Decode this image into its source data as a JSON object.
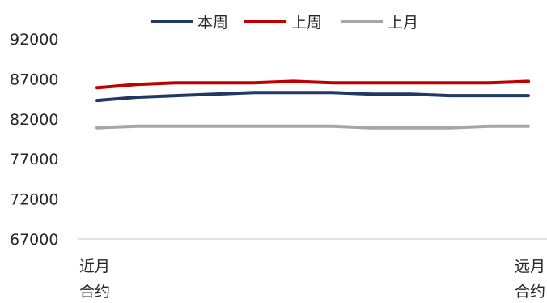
{
  "chart_data": {
    "type": "line",
    "title": "",
    "xlabel": "",
    "ylabel": "",
    "ylim": [
      67000,
      92000
    ],
    "yticks": [
      92000,
      87000,
      82000,
      77000,
      72000,
      67000
    ],
    "grid": false,
    "legend_position": "top",
    "categories": [
      "近月合约",
      "",
      "",
      "",
      "",
      "",
      "",
      "",
      "",
      "",
      "",
      "远月合约"
    ],
    "category_labels": [
      {
        "index": 0,
        "line1": "近月",
        "line2": "合约"
      },
      {
        "index": 11,
        "line1": "远月",
        "line2": "合约"
      }
    ],
    "series": [
      {
        "name": "本周",
        "color": "#1f3864",
        "values": [
          84300,
          84700,
          84900,
          85100,
          85300,
          85300,
          85300,
          85100,
          85100,
          84900,
          84900,
          84900
        ]
      },
      {
        "name": "上周",
        "color": "#c00000",
        "values": [
          85900,
          86300,
          86500,
          86500,
          86500,
          86700,
          86500,
          86500,
          86500,
          86500,
          86500,
          86700
        ]
      },
      {
        "name": "上月",
        "color": "#a6a6a6",
        "values": [
          80900,
          81100,
          81100,
          81100,
          81100,
          81100,
          81100,
          80900,
          80900,
          80900,
          81100,
          81100
        ]
      }
    ]
  }
}
